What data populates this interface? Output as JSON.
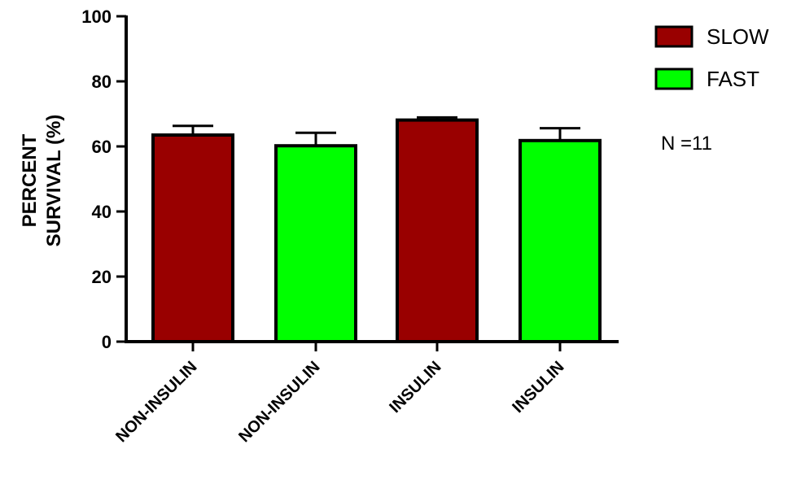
{
  "chart_data": {
    "type": "bar",
    "categories": [
      "NON-INSULIN",
      "NON-INSULIN",
      "INSULIN",
      "INSULIN"
    ],
    "values": [
      63.5,
      60.2,
      68.1,
      61.8
    ],
    "error_bars": [
      2.8,
      4.0,
      0.8,
      3.8
    ],
    "bar_series": [
      "SLOW",
      "FAST",
      "SLOW",
      "FAST"
    ],
    "series": [
      {
        "name": "SLOW",
        "color": "#990000"
      },
      {
        "name": "FAST",
        "color": "#00ff00"
      }
    ],
    "ylabel_lines": [
      "PERCENT",
      "SURVIVAL (%)"
    ],
    "ylim": [
      0,
      100
    ],
    "yticks": [
      0,
      20,
      40,
      60,
      80,
      100
    ],
    "ytick_labels": [
      "0",
      "20",
      "40",
      "60",
      "80",
      "100"
    ],
    "legend_position": "top-right",
    "annotation": "N =11",
    "grid": false
  }
}
